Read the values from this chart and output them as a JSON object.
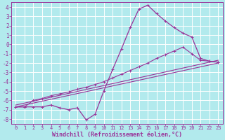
{
  "background_color": "#b2eaed",
  "grid_color": "#c8e8eb",
  "line_color": "#993399",
  "marker_color": "#993399",
  "xlabel": "Windchill (Refroidissement éolien,°C)",
  "xlabel_fontsize": 6,
  "xtick_fontsize": 5,
  "ytick_fontsize": 5.5,
  "xlim": [
    -0.5,
    23.5
  ],
  "ylim": [
    -8.5,
    4.5
  ],
  "xticks": [
    0,
    1,
    2,
    3,
    4,
    5,
    6,
    7,
    8,
    9,
    10,
    11,
    12,
    13,
    14,
    15,
    16,
    17,
    18,
    19,
    20,
    21,
    22,
    23
  ],
  "yticks": [
    -8,
    -7,
    -6,
    -5,
    -4,
    -3,
    -2,
    -1,
    0,
    1,
    2,
    3,
    4
  ],
  "series": [
    {
      "x": [
        0,
        23
      ],
      "y": [
        -6.7,
        -2.0
      ],
      "marker": false,
      "lw": 0.8
    },
    {
      "x": [
        0,
        23
      ],
      "y": [
        -6.5,
        -1.7
      ],
      "marker": false,
      "lw": 0.8
    },
    {
      "x": [
        0,
        1,
        2,
        3,
        4,
        5,
        6,
        7,
        8,
        9,
        10,
        11,
        12,
        13,
        14,
        15,
        16,
        17,
        18,
        19,
        20,
        21,
        22,
        23
      ],
      "y": [
        -6.7,
        -6.7,
        -6.0,
        -5.8,
        -5.5,
        -5.3,
        -5.1,
        -4.8,
        -4.6,
        -4.3,
        -4.0,
        -3.6,
        -3.2,
        -2.8,
        -2.4,
        -2.0,
        -1.5,
        -1.1,
        -0.7,
        -0.3,
        -1.0,
        -1.7,
        -1.8,
        -1.9
      ],
      "marker": true,
      "lw": 0.8
    },
    {
      "x": [
        0,
        1,
        2,
        3,
        4,
        5,
        6,
        7,
        8,
        9,
        10,
        11,
        12,
        13,
        14,
        15,
        16,
        17,
        18,
        19,
        20,
        21,
        22,
        23
      ],
      "y": [
        -6.7,
        -6.7,
        -6.7,
        -6.7,
        -6.5,
        -6.8,
        -7.0,
        -6.8,
        -8.1,
        -7.5,
        -5.0,
        -2.7,
        -0.5,
        1.8,
        3.8,
        4.2,
        3.3,
        2.5,
        1.8,
        1.2,
        0.8,
        -1.5,
        -1.8,
        -1.9
      ],
      "marker": true,
      "lw": 0.9
    }
  ]
}
